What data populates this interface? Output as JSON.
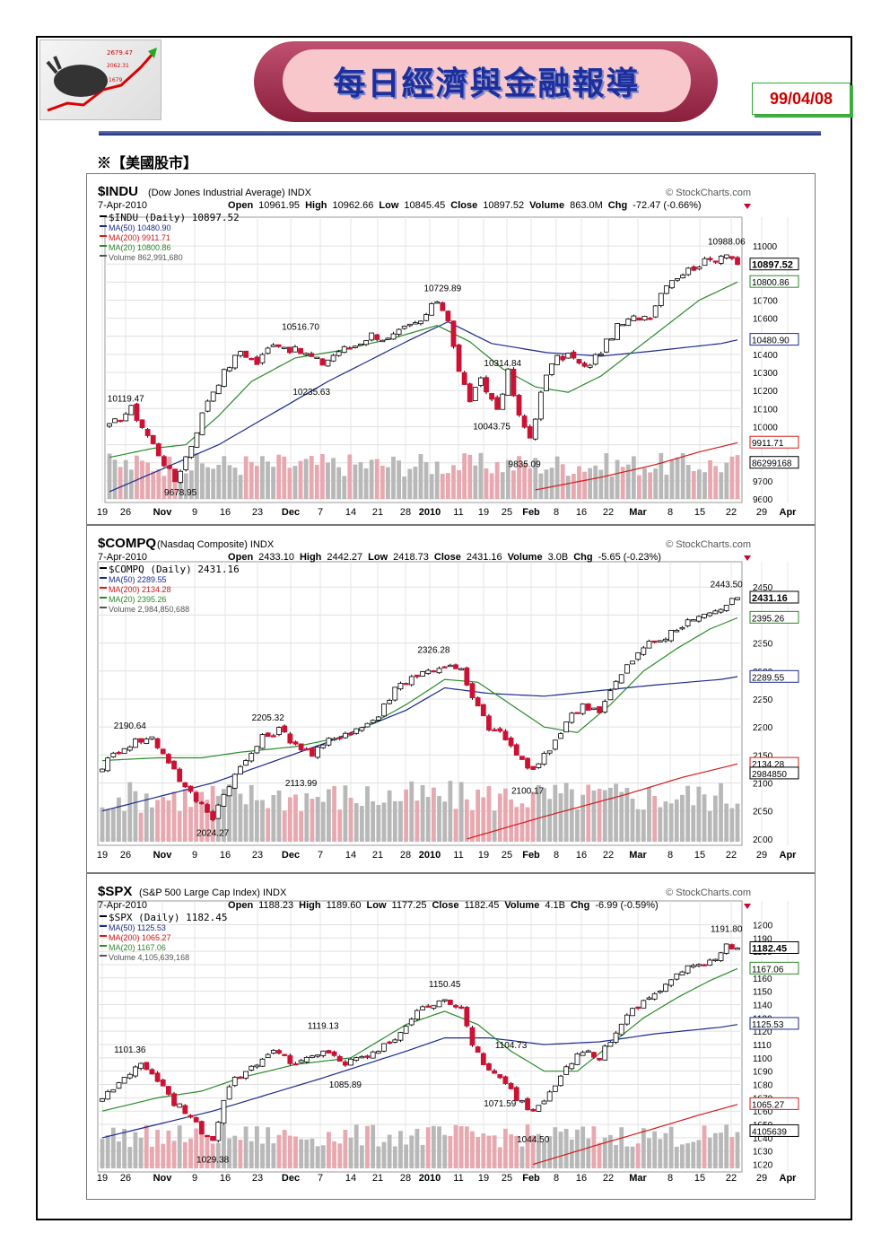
{
  "header": {
    "title": "每日經濟與金融報導",
    "date": "99/04/08",
    "section": "※【美國股市】",
    "logo_numbers": [
      "2679.47",
      "2062.31",
      "1679"
    ]
  },
  "colors": {
    "up": "#ffffff",
    "down": "#cc1133",
    "ma50": "#1a2a8c",
    "ma200": "#d41a1a",
    "ma20": "#2a8a2a",
    "vol_up": "#b8b8b8",
    "vol_down": "#e8a8b0"
  },
  "xlabels": [
    "19",
    "26",
    "Nov",
    "9",
    "16",
    "23",
    "Dec",
    "7",
    "14",
    "21",
    "28",
    "2010",
    "11",
    "19",
    "25",
    "Feb",
    "8",
    "16",
    "22",
    "Mar",
    "8",
    "15",
    "22",
    "29",
    "Apr"
  ],
  "chart_data": [
    {
      "type": "line",
      "symbol": "$INDU",
      "name": "(Dow Jones Industrial Average)",
      "exchange": "INDX",
      "credit": "© StockCharts.com",
      "date": "7-Apr-2010",
      "open": "10961.95",
      "high": "10962.66",
      "low": "10845.45",
      "close": "10897.52",
      "volume": "863.0M",
      "chg": "-72.47 (-0.66%)",
      "legend": [
        "$INDU (Daily) 10897.52",
        "MA(50) 10480.90",
        "MA(200) 9911.71",
        "MA(20) 10800.86",
        "Volume 862,991,680"
      ],
      "ylim": [
        9600,
        11050
      ],
      "yticks": [
        9600,
        9700,
        9800,
        9900,
        10000,
        10100,
        10200,
        10300,
        10400,
        10500,
        10600,
        10700,
        10800,
        10900,
        11000
      ],
      "tags": [
        {
          "v": 10897.52,
          "text": "10897.52"
        },
        {
          "v": 10800.86,
          "text": "10800.86"
        },
        {
          "v": 10480.9,
          "text": "10480.90"
        },
        {
          "v": 9911.71,
          "text": "9911.71"
        },
        {
          "v": 9800,
          "text": "86299168"
        }
      ],
      "annotations": [
        {
          "i": 3,
          "v": 10119.47,
          "text": "10119.47"
        },
        {
          "i": 13,
          "v": 9678.95,
          "text": "9678.95"
        },
        {
          "i": 35,
          "v": 10516.7,
          "text": "10516.70"
        },
        {
          "i": 37,
          "v": 10235.63,
          "text": "10235.63"
        },
        {
          "i": 61,
          "v": 10729.89,
          "text": "10729.89"
        },
        {
          "i": 72,
          "v": 10314.84,
          "text": "10314.84"
        },
        {
          "i": 70,
          "v": 10043.75,
          "text": "10043.75"
        },
        {
          "i": 76,
          "v": 9835.09,
          "text": "9835.09"
        },
        {
          "i": 113,
          "v": 10988.06,
          "text": "10988.06"
        }
      ],
      "keypoints": [
        [
          0,
          10000
        ],
        [
          4,
          10100
        ],
        [
          8,
          9900
        ],
        [
          12,
          9700
        ],
        [
          15,
          9900
        ],
        [
          18,
          10150
        ],
        [
          21,
          10300
        ],
        [
          24,
          10420
        ],
        [
          27,
          10350
        ],
        [
          30,
          10470
        ],
        [
          33,
          10430
        ],
        [
          36,
          10400
        ],
        [
          39,
          10350
        ],
        [
          42,
          10420
        ],
        [
          45,
          10450
        ],
        [
          48,
          10510
        ],
        [
          51,
          10480
        ],
        [
          54,
          10540
        ],
        [
          57,
          10580
        ],
        [
          60,
          10700
        ],
        [
          62,
          10600
        ],
        [
          64,
          10300
        ],
        [
          66,
          10150
        ],
        [
          68,
          10250
        ],
        [
          71,
          10100
        ],
        [
          73,
          10300
        ],
        [
          75,
          10050
        ],
        [
          77,
          9940
        ],
        [
          79,
          10180
        ],
        [
          81,
          10360
        ],
        [
          84,
          10400
        ],
        [
          87,
          10320
        ],
        [
          90,
          10420
        ],
        [
          93,
          10550
        ],
        [
          96,
          10600
        ],
        [
          99,
          10620
        ],
        [
          102,
          10800
        ],
        [
          105,
          10850
        ],
        [
          108,
          10900
        ],
        [
          111,
          10930
        ],
        [
          113,
          10970
        ],
        [
          115,
          10897
        ]
      ],
      "ma50_keys": [
        [
          0,
          9640
        ],
        [
          20,
          9900
        ],
        [
          40,
          10250
        ],
        [
          55,
          10480
        ],
        [
          62,
          10580
        ],
        [
          70,
          10460
        ],
        [
          80,
          10410
        ],
        [
          90,
          10390
        ],
        [
          100,
          10420
        ],
        [
          112,
          10460
        ],
        [
          115,
          10480
        ]
      ],
      "ma200_keys": [
        [
          78,
          9650
        ],
        [
          90,
          9720
        ],
        [
          100,
          9790
        ],
        [
          108,
          9860
        ],
        [
          115,
          9911
        ]
      ],
      "ma20_keys": [
        [
          0,
          9830
        ],
        [
          8,
          9880
        ],
        [
          14,
          9900
        ],
        [
          20,
          10060
        ],
        [
          26,
          10250
        ],
        [
          34,
          10380
        ],
        [
          42,
          10420
        ],
        [
          52,
          10490
        ],
        [
          60,
          10560
        ],
        [
          66,
          10470
        ],
        [
          72,
          10320
        ],
        [
          78,
          10220
        ],
        [
          84,
          10190
        ],
        [
          90,
          10280
        ],
        [
          96,
          10420
        ],
        [
          102,
          10560
        ],
        [
          108,
          10700
        ],
        [
          115,
          10800
        ]
      ],
      "vol_base": 9640,
      "vol_top": 9880
    },
    {
      "type": "line",
      "symbol": "$COMPQ",
      "name": "(Nasdaq Composite)",
      "exchange": "INDX",
      "credit": "© StockCharts.com",
      "date": "7-Apr-2010",
      "open": "2433.10",
      "high": "2442.27",
      "low": "2418.73",
      "close": "2431.16",
      "volume": "3.0B",
      "chg": "-5.65 (-0.23%)",
      "legend": [
        "$COMPQ (Daily) 2431.16",
        "MA(50) 2289.55",
        "MA(200) 2134.28",
        "MA(20) 2395.26",
        "Volume 2,984,850,688"
      ],
      "ylim": [
        1995,
        2460
      ],
      "yticks": [
        2000,
        2050,
        2100,
        2150,
        2200,
        2250,
        2300,
        2350,
        2400,
        2450
      ],
      "tags": [
        {
          "v": 2431.16,
          "text": "2431.16"
        },
        {
          "v": 2395.26,
          "text": "2395.26"
        },
        {
          "v": 2289.55,
          "text": "2289.55"
        },
        {
          "v": 2134.28,
          "text": "2134.28"
        },
        {
          "v": 2117,
          "text": "2984850"
        }
      ],
      "annotations": [
        {
          "i": 5,
          "v": 2190.64,
          "text": "2190.64"
        },
        {
          "i": 20,
          "v": 2024.27,
          "text": "2024.27"
        },
        {
          "i": 30,
          "v": 2205.32,
          "text": "2205.32"
        },
        {
          "i": 36,
          "v": 2113.99,
          "text": "2113.99"
        },
        {
          "i": 60,
          "v": 2326.28,
          "text": "2326.28"
        },
        {
          "i": 77,
          "v": 2100.17,
          "text": "2100.17"
        },
        {
          "i": 113,
          "v": 2443.5,
          "text": "2443.50"
        }
      ],
      "keypoints": [
        [
          0,
          2130
        ],
        [
          3,
          2160
        ],
        [
          6,
          2175
        ],
        [
          9,
          2180
        ],
        [
          12,
          2140
        ],
        [
          15,
          2090
        ],
        [
          18,
          2060
        ],
        [
          20,
          2040
        ],
        [
          23,
          2100
        ],
        [
          26,
          2140
        ],
        [
          29,
          2180
        ],
        [
          32,
          2195
        ],
        [
          35,
          2170
        ],
        [
          38,
          2150
        ],
        [
          41,
          2175
        ],
        [
          44,
          2190
        ],
        [
          47,
          2200
        ],
        [
          50,
          2220
        ],
        [
          53,
          2270
        ],
        [
          56,
          2290
        ],
        [
          59,
          2300
        ],
        [
          62,
          2310
        ],
        [
          65,
          2300
        ],
        [
          67,
          2250
        ],
        [
          70,
          2200
        ],
        [
          73,
          2180
        ],
        [
          75,
          2150
        ],
        [
          78,
          2120
        ],
        [
          81,
          2160
        ],
        [
          84,
          2210
        ],
        [
          87,
          2240
        ],
        [
          90,
          2230
        ],
        [
          93,
          2280
        ],
        [
          96,
          2320
        ],
        [
          99,
          2350
        ],
        [
          102,
          2360
        ],
        [
          105,
          2380
        ],
        [
          108,
          2400
        ],
        [
          111,
          2405
        ],
        [
          113,
          2420
        ],
        [
          115,
          2431
        ]
      ],
      "ma50_keys": [
        [
          0,
          2050
        ],
        [
          20,
          2100
        ],
        [
          40,
          2170
        ],
        [
          55,
          2230
        ],
        [
          62,
          2270
        ],
        [
          70,
          2260
        ],
        [
          80,
          2255
        ],
        [
          90,
          2265
        ],
        [
          100,
          2275
        ],
        [
          112,
          2285
        ],
        [
          115,
          2290
        ]
      ],
      "ma200_keys": [
        [
          66,
          2000
        ],
        [
          80,
          2040
        ],
        [
          95,
          2080
        ],
        [
          105,
          2110
        ],
        [
          115,
          2134
        ]
      ],
      "ma20_keys": [
        [
          0,
          2140
        ],
        [
          10,
          2145
        ],
        [
          18,
          2145
        ],
        [
          25,
          2155
        ],
        [
          35,
          2165
        ],
        [
          45,
          2185
        ],
        [
          55,
          2240
        ],
        [
          62,
          2285
        ],
        [
          68,
          2280
        ],
        [
          74,
          2240
        ],
        [
          80,
          2200
        ],
        [
          86,
          2190
        ],
        [
          92,
          2240
        ],
        [
          98,
          2300
        ],
        [
          104,
          2340
        ],
        [
          110,
          2375
        ],
        [
          115,
          2395
        ]
      ],
      "vol_base": 2010,
      "vol_top": 2115
    },
    {
      "type": "line",
      "symbol": "$SPX",
      "name": "(S&P 500 Large Cap Index)",
      "exchange": "INDX",
      "credit": "© StockCharts.com",
      "date": "7-Apr-2010",
      "open": "1188.23",
      "high": "1189.60",
      "low": "1177.25",
      "close": "1182.45",
      "volume": "4.1B",
      "chg": "-6.99 (-0.59%)",
      "legend": [
        "$SPX (Daily) 1182.45",
        "MA(50) 1125.53",
        "MA(200) 1065.27",
        "MA(20) 1167.06",
        "Volume 4,105,639,168"
      ],
      "ylim": [
        1017,
        1203
      ],
      "yticks": [
        1020,
        1030,
        1040,
        1050,
        1060,
        1070,
        1080,
        1090,
        1100,
        1110,
        1120,
        1130,
        1140,
        1150,
        1160,
        1170,
        1180,
        1190,
        1200
      ],
      "tags": [
        {
          "v": 1182.45,
          "text": "1182.45"
        },
        {
          "v": 1167.06,
          "text": "1167.06"
        },
        {
          "v": 1125.53,
          "text": "1125.53"
        },
        {
          "v": 1065.27,
          "text": "1065.27"
        },
        {
          "v": 1045,
          "text": "4105639"
        }
      ],
      "annotations": [
        {
          "i": 5,
          "v": 1101.36,
          "text": "1101.36"
        },
        {
          "i": 20,
          "v": 1029.38,
          "text": "1029.38"
        },
        {
          "i": 40,
          "v": 1119.13,
          "text": "1119.13"
        },
        {
          "i": 44,
          "v": 1085.89,
          "text": "1085.89"
        },
        {
          "i": 62,
          "v": 1150.45,
          "text": "1150.45"
        },
        {
          "i": 74,
          "v": 1104.73,
          "text": "1104.73"
        },
        {
          "i": 72,
          "v": 1071.59,
          "text": "1071.59"
        },
        {
          "i": 78,
          "v": 1044.5,
          "text": "1044.50"
        },
        {
          "i": 113,
          "v": 1191.8,
          "text": "1191.80"
        }
      ],
      "keypoints": [
        [
          0,
          1070
        ],
        [
          3,
          1080
        ],
        [
          6,
          1095
        ],
        [
          9,
          1090
        ],
        [
          12,
          1070
        ],
        [
          15,
          1060
        ],
        [
          18,
          1045
        ],
        [
          20,
          1040
        ],
        [
          23,
          1080
        ],
        [
          26,
          1090
        ],
        [
          29,
          1100
        ],
        [
          32,
          1105
        ],
        [
          35,
          1095
        ],
        [
          38,
          1100
        ],
        [
          41,
          1105
        ],
        [
          44,
          1095
        ],
        [
          47,
          1100
        ],
        [
          50,
          1105
        ],
        [
          53,
          1115
        ],
        [
          56,
          1130
        ],
        [
          59,
          1140
        ],
        [
          62,
          1145
        ],
        [
          65,
          1135
        ],
        [
          67,
          1110
        ],
        [
          70,
          1090
        ],
        [
          73,
          1080
        ],
        [
          75,
          1070
        ],
        [
          78,
          1060
        ],
        [
          81,
          1075
        ],
        [
          84,
          1095
        ],
        [
          87,
          1105
        ],
        [
          90,
          1100
        ],
        [
          93,
          1120
        ],
        [
          96,
          1135
        ],
        [
          99,
          1145
        ],
        [
          102,
          1155
        ],
        [
          105,
          1165
        ],
        [
          108,
          1170
        ],
        [
          111,
          1175
        ],
        [
          113,
          1185
        ],
        [
          115,
          1182
        ]
      ],
      "ma50_keys": [
        [
          0,
          1040
        ],
        [
          20,
          1060
        ],
        [
          40,
          1085
        ],
        [
          55,
          1105
        ],
        [
          62,
          1115
        ],
        [
          70,
          1115
        ],
        [
          80,
          1110
        ],
        [
          90,
          1112
        ],
        [
          100,
          1118
        ],
        [
          112,
          1123
        ],
        [
          115,
          1125
        ]
      ],
      "ma200_keys": [
        [
          78,
          1020
        ],
        [
          90,
          1035
        ],
        [
          100,
          1047
        ],
        [
          108,
          1057
        ],
        [
          115,
          1065
        ]
      ],
      "ma20_keys": [
        [
          0,
          1060
        ],
        [
          10,
          1070
        ],
        [
          18,
          1075
        ],
        [
          25,
          1085
        ],
        [
          35,
          1095
        ],
        [
          45,
          1100
        ],
        [
          55,
          1125
        ],
        [
          62,
          1135
        ],
        [
          68,
          1125
        ],
        [
          74,
          1105
        ],
        [
          80,
          1090
        ],
        [
          86,
          1090
        ],
        [
          92,
          1110
        ],
        [
          98,
          1130
        ],
        [
          104,
          1145
        ],
        [
          110,
          1158
        ],
        [
          115,
          1167
        ]
      ],
      "vol_base": 1022,
      "vol_top": 1053
    }
  ]
}
